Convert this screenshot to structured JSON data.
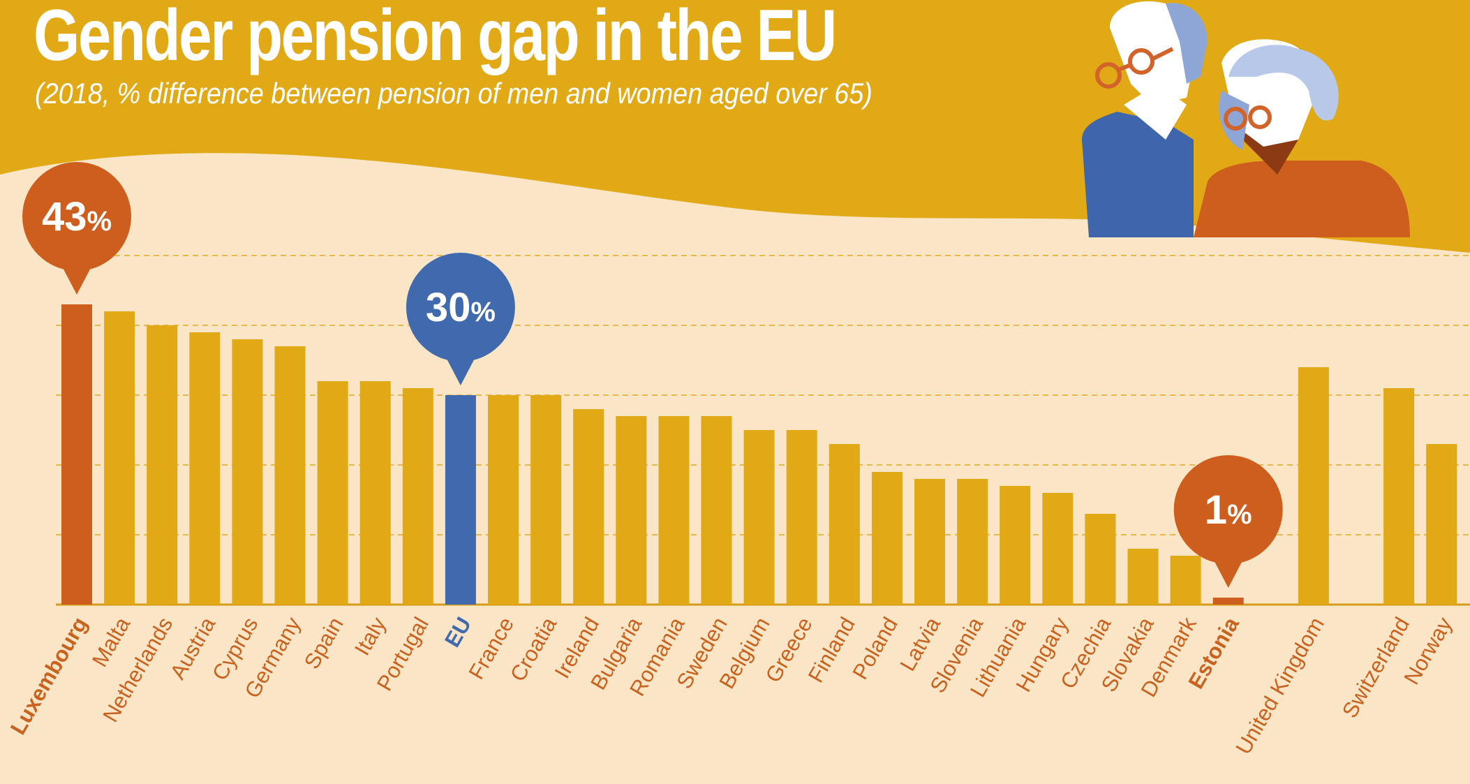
{
  "header": {
    "title": "Gender pension gap in the EU",
    "subtitle": "(2018, % difference between pension of men and women aged over 65)"
  },
  "colors": {
    "background_top": "#e2a916",
    "background_panel": "#fae6c6",
    "bar_default": "#e2a916",
    "bar_highlight_max": "#ce5e1e",
    "bar_highlight_eu": "#4169ad",
    "label_default": "#c9621e",
    "label_eu": "#4169ad",
    "gridline": "#e8b84a"
  },
  "callouts": [
    {
      "category": "Luxembourg",
      "text": "43",
      "unit": "%",
      "color": "#ce5e1e"
    },
    {
      "category": "EU",
      "text": "30",
      "unit": "%",
      "color": "#4169ad"
    },
    {
      "category": "Estonia",
      "text": "1",
      "unit": "%",
      "color": "#ce5e1e"
    }
  ],
  "illustration": {
    "description_icon": "elderly-couple-icon"
  },
  "chart_data": {
    "type": "bar",
    "title": "Gender pension gap in the EU",
    "subtitle": "(2018, % difference between pension of men and women aged over 65)",
    "xlabel": "",
    "ylabel": "",
    "ylim": [
      0,
      50
    ],
    "grid": true,
    "categories": [
      "Luxembourg",
      "Malta",
      "Netherlands",
      "Austria",
      "Cyprus",
      "Germany",
      "Spain",
      "Italy",
      "Portugal",
      "EU",
      "France",
      "Croatia",
      "Ireland",
      "Bulgaria",
      "Romania",
      "Sweden",
      "Belgium",
      "Greece",
      "Finland",
      "Poland",
      "Latvia",
      "Slovenia",
      "Lithuania",
      "Hungary",
      "Czechia",
      "Slovakia",
      "Denmark",
      "Estonia",
      "",
      "United Kingdom",
      "",
      "Switzerland",
      "Norway"
    ],
    "values": [
      43,
      42,
      40,
      39,
      38,
      37,
      32,
      32,
      31,
      30,
      30,
      30,
      28,
      27,
      27,
      27,
      25,
      25,
      23,
      19,
      18,
      18,
      17,
      16,
      13,
      8,
      7,
      1,
      null,
      34,
      null,
      31,
      23
    ],
    "highlights": {
      "Luxembourg": "max",
      "EU": "eu",
      "Estonia": "min"
    },
    "bold_labels": [
      "Luxembourg",
      "EU",
      "Estonia"
    ]
  }
}
